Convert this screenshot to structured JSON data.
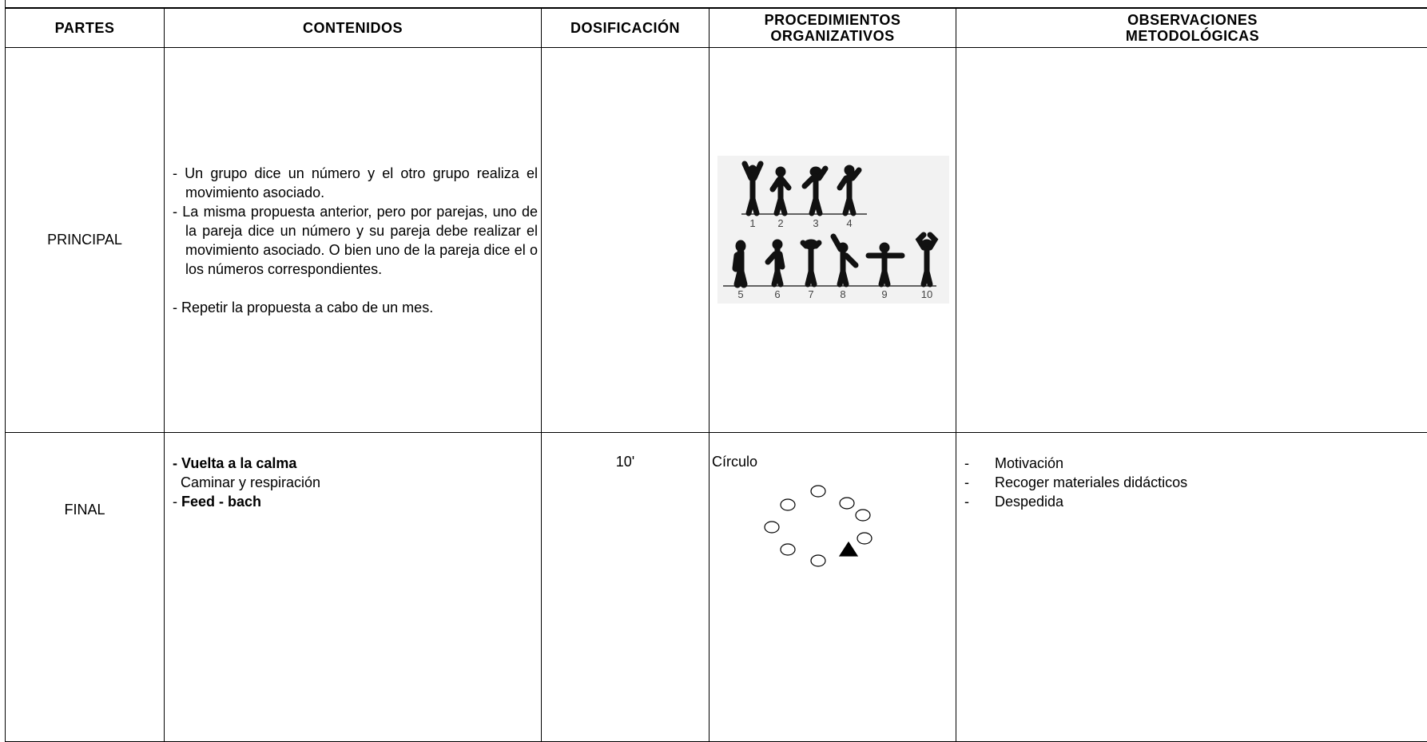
{
  "table": {
    "headers": [
      "PARTES",
      "CONTENIDOS",
      "DOSIFICACIÓN",
      "PROCEDIMIENTOS ORGANIZATIVOS",
      "OBSERVACIONES METODOLÓGICAS"
    ],
    "rows": [
      {
        "parte": "PRINCIPAL",
        "contenidos": [
          "- Un grupo dice un número y el otro grupo realiza el movimiento asociado.",
          "- La misma propuesta anterior, pero por parejas, uno de la pareja dice un número y su pareja debe realizar el movimiento asociado. O bien uno de la pareja dice el o los números correspondientes.",
          "- Repetir la propuesta a cabo de un mes."
        ],
        "figure_numbers": [
          "1",
          "2",
          "3",
          "4",
          "5",
          "6",
          "7",
          "8",
          "9",
          "10"
        ]
      },
      {
        "parte": "FINAL",
        "contenidos": [
          "- Vuelta a la calma",
          "  Caminar y respiración",
          {
            "marker": "- ",
            "text": "Feed - bach"
          }
        ],
        "dosificacion": "10'",
        "procedimientos": "Círculo",
        "observaciones": [
          {
            "marker": "-",
            "text": "Motivación"
          },
          {
            "marker": "-",
            "text": "Recoger materiales didácticos"
          },
          {
            "marker": "-",
            "text": "Despedida"
          }
        ]
      }
    ]
  }
}
